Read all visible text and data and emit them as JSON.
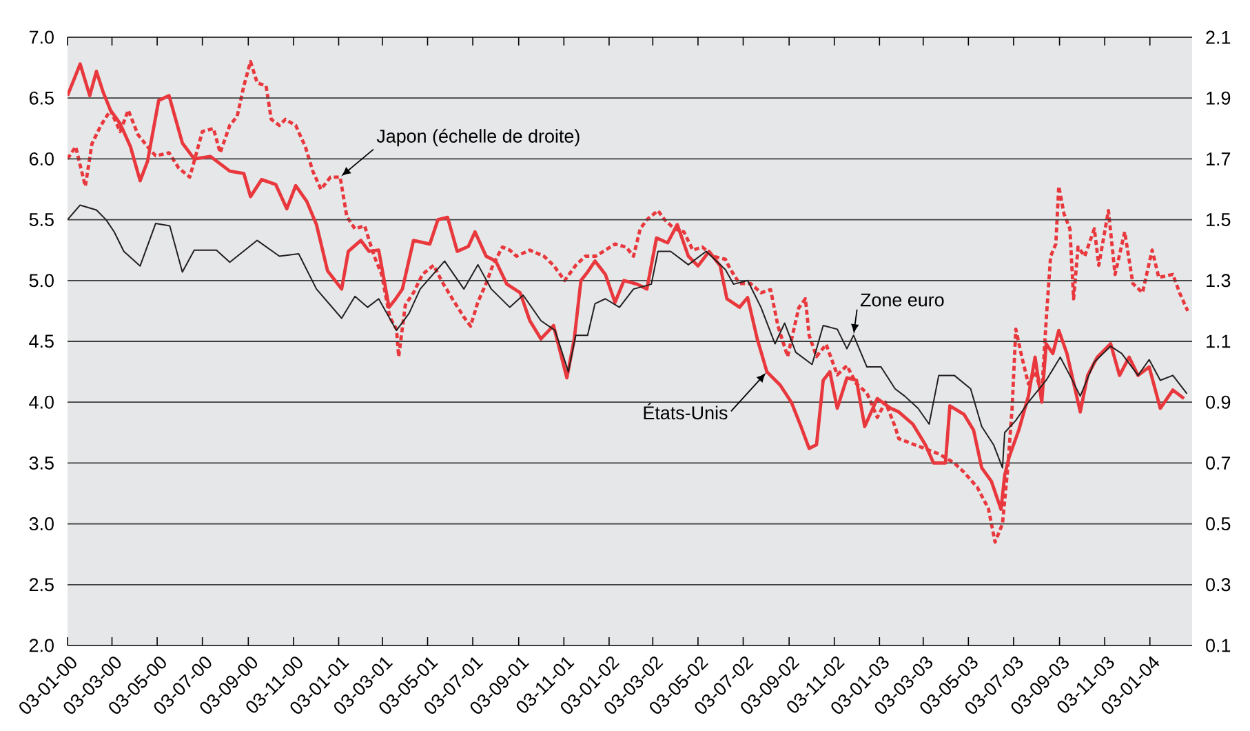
{
  "chart_data": {
    "type": "line",
    "xlim": [
      "2000-01-03",
      "2004-02-29"
    ],
    "ylim": [
      2.0,
      7.0
    ],
    "y2lim": [
      0.1,
      2.1
    ],
    "xticks": [
      {
        "value": "2000-01-03",
        "label": "03-01-00"
      },
      {
        "value": "2000-03-03",
        "label": "03-03-00"
      },
      {
        "value": "2000-05-03",
        "label": "03-05-00"
      },
      {
        "value": "2000-07-03",
        "label": "03-07-00"
      },
      {
        "value": "2000-09-03",
        "label": "03-09-00"
      },
      {
        "value": "2000-11-03",
        "label": "03-11-00"
      },
      {
        "value": "2001-01-03",
        "label": "03-01-01"
      },
      {
        "value": "2001-03-03",
        "label": "03-03-01"
      },
      {
        "value": "2001-05-03",
        "label": "03-05-01"
      },
      {
        "value": "2001-07-03",
        "label": "03-07-01"
      },
      {
        "value": "2001-09-03",
        "label": "03-09-01"
      },
      {
        "value": "2001-11-03",
        "label": "03-11-01"
      },
      {
        "value": "2002-01-03",
        "label": "03-01-02"
      },
      {
        "value": "2002-03-03",
        "label": "03-03-02"
      },
      {
        "value": "2002-05-03",
        "label": "03-05-02"
      },
      {
        "value": "2002-07-03",
        "label": "03-07-02"
      },
      {
        "value": "2002-09-03",
        "label": "03-09-02"
      },
      {
        "value": "2002-11-03",
        "label": "03-11-02"
      },
      {
        "value": "2003-01-03",
        "label": "03-01-03"
      },
      {
        "value": "2003-03-03",
        "label": "03-03-03"
      },
      {
        "value": "2003-05-03",
        "label": "03-05-03"
      },
      {
        "value": "2003-07-03",
        "label": "03-07-03"
      },
      {
        "value": "2003-09-03",
        "label": "03-09-03"
      },
      {
        "value": "2003-11-03",
        "label": "03-11-03"
      },
      {
        "value": "2004-01-03",
        "label": "03-01-04"
      }
    ],
    "yticks": [
      {
        "value": 2.0,
        "label": "2.0"
      },
      2.5,
      {
        "value": 3.0,
        "label": "3.0"
      },
      3.5,
      {
        "value": 4.0,
        "label": "4.0"
      },
      4.5,
      {
        "value": 5.0,
        "label": "5.0"
      },
      5.5,
      {
        "value": 6.0,
        "label": "6.0"
      },
      6.5,
      {
        "value": 7.0,
        "label": "7.0"
      }
    ],
    "y2ticks": [
      0.1,
      0.3,
      0.5,
      0.7,
      0.9,
      1.1,
      1.3,
      1.5,
      1.7,
      1.9,
      2.1
    ],
    "grid": "y",
    "legend": false,
    "marker": "none",
    "series": [
      {
        "name": "États-Unis",
        "color": "#e8383d",
        "line_style": "solid",
        "x": [
          "2000-01-03",
          "2000-01-20",
          "2000-02-02",
          "2000-02-11",
          "2000-02-20",
          "2000-03-01",
          "2000-03-14",
          "2000-03-28",
          "2000-04-10",
          "2000-04-20",
          "2000-05-05",
          "2000-05-19",
          "2000-06-06",
          "2000-06-22",
          "2000-07-14",
          "2000-08-09",
          "2000-08-28",
          "2000-09-06",
          "2000-09-21",
          "2000-10-10",
          "2000-10-25",
          "2000-11-06",
          "2000-11-21",
          "2000-12-04",
          "2000-12-19",
          "2001-01-07",
          "2001-01-16",
          "2001-02-02",
          "2001-02-13",
          "2001-02-26",
          "2001-03-12",
          "2001-03-21",
          "2001-03-30",
          "2001-04-14",
          "2001-05-06",
          "2001-05-17",
          "2001-05-30",
          "2001-06-12",
          "2001-06-27",
          "2001-07-06",
          "2001-07-21",
          "2001-08-03",
          "2001-08-18",
          "2001-09-05",
          "2001-09-18",
          "2001-10-03",
          "2001-10-20",
          "2001-11-07",
          "2001-11-17",
          "2001-11-26",
          "2001-12-05",
          "2001-12-15",
          "2001-12-29",
          "2002-01-11",
          "2002-01-23",
          "2002-02-10",
          "2002-02-23",
          "2002-03-08",
          "2002-03-23",
          "2002-04-05",
          "2002-04-20",
          "2002-05-03",
          "2002-05-18",
          "2002-06-02",
          "2002-06-11",
          "2002-06-28",
          "2002-07-09",
          "2002-07-22",
          "2002-08-04",
          "2002-08-22",
          "2002-09-06",
          "2002-09-19",
          "2002-09-30",
          "2002-10-10",
          "2002-10-19",
          "2002-10-28",
          "2002-11-07",
          "2002-11-20",
          "2002-12-03",
          "2002-12-14",
          "2002-12-31",
          "2003-01-18",
          "2003-01-29",
          "2003-02-17",
          "2003-03-06",
          "2003-03-17",
          "2003-04-02",
          "2003-04-08",
          "2003-04-27",
          "2003-05-10",
          "2003-05-21",
          "2003-06-03",
          "2003-06-16",
          "2003-06-21",
          "2003-06-27",
          "2003-07-10",
          "2003-07-23",
          "2003-08-01",
          "2003-08-10",
          "2003-08-16",
          "2003-08-25",
          "2003-09-02",
          "2003-09-13",
          "2003-10-01",
          "2003-10-11",
          "2003-10-24",
          "2003-11-11",
          "2003-11-23",
          "2003-12-06",
          "2003-12-18",
          "2004-01-02",
          "2004-01-17",
          "2004-02-03",
          "2004-02-18"
        ],
        "values": [
          6.52,
          6.78,
          6.52,
          6.72,
          6.55,
          6.4,
          6.29,
          6.1,
          5.82,
          5.98,
          6.48,
          6.52,
          6.13,
          6.0,
          6.02,
          5.9,
          5.88,
          5.69,
          5.83,
          5.79,
          5.59,
          5.78,
          5.65,
          5.46,
          5.08,
          4.93,
          5.24,
          5.33,
          5.24,
          5.25,
          4.78,
          4.85,
          4.93,
          5.33,
          5.3,
          5.5,
          5.52,
          5.24,
          5.28,
          5.4,
          5.2,
          5.16,
          4.97,
          4.9,
          4.67,
          4.52,
          4.63,
          4.2,
          4.52,
          5.0,
          5.07,
          5.16,
          5.05,
          4.82,
          5.0,
          4.97,
          4.93,
          5.35,
          5.31,
          5.46,
          5.2,
          5.12,
          5.24,
          5.12,
          4.85,
          4.78,
          4.86,
          4.52,
          4.25,
          4.14,
          4.0,
          3.8,
          3.62,
          3.65,
          4.18,
          4.25,
          3.95,
          4.2,
          4.18,
          3.8,
          4.03,
          3.95,
          3.92,
          3.82,
          3.65,
          3.5,
          3.5,
          3.97,
          3.9,
          3.77,
          3.46,
          3.35,
          3.12,
          3.4,
          3.55,
          3.77,
          4.05,
          4.37,
          4.0,
          4.48,
          4.4,
          4.59,
          4.4,
          3.92,
          4.22,
          4.37,
          4.48,
          4.22,
          4.37,
          4.22,
          4.29,
          3.95,
          4.1,
          4.03
        ]
      },
      {
        "name": "Japon (échelle de droite)",
        "color": "#e8383d",
        "line_style": "dashed",
        "axis": "y2",
        "x": [
          "2000-01-03",
          "2000-01-14",
          "2000-01-27",
          "2000-02-05",
          "2000-02-17",
          "2000-03-01",
          "2000-03-14",
          "2000-03-25",
          "2000-04-07",
          "2000-04-20",
          "2000-05-01",
          "2000-05-19",
          "2000-06-01",
          "2000-06-16",
          "2000-07-03",
          "2000-07-18",
          "2000-07-27",
          "2000-08-09",
          "2000-08-19",
          "2000-08-28",
          "2000-09-06",
          "2000-09-15",
          "2000-09-27",
          "2000-10-04",
          "2000-10-15",
          "2000-10-23",
          "2000-11-06",
          "2000-11-19",
          "2000-11-29",
          "2000-12-10",
          "2000-12-23",
          "2001-01-05",
          "2001-01-14",
          "2001-01-25",
          "2001-02-07",
          "2001-02-20",
          "2001-03-02",
          "2001-03-13",
          "2001-03-22",
          "2001-03-25",
          "2001-04-03",
          "2001-04-14",
          "2001-04-26",
          "2001-05-11",
          "2001-05-24",
          "2001-06-08",
          "2001-06-21",
          "2001-06-30",
          "2001-07-10",
          "2001-07-21",
          "2001-07-30",
          "2001-08-12",
          "2001-08-22",
          "2001-08-31",
          "2001-09-18",
          "2001-10-07",
          "2001-10-20",
          "2001-11-04",
          "2001-11-19",
          "2001-12-02",
          "2001-12-16",
          "2001-12-29",
          "2002-01-11",
          "2002-01-26",
          "2002-02-05",
          "2002-02-14",
          "2002-02-23",
          "2002-03-10",
          "2002-03-19",
          "2002-04-01",
          "2002-04-14",
          "2002-04-26",
          "2002-05-09",
          "2002-05-23",
          "2002-06-09",
          "2002-06-15",
          "2002-06-28",
          "2002-07-13",
          "2002-07-27",
          "2002-08-09",
          "2002-08-19",
          "2002-09-01",
          "2002-09-16",
          "2002-09-25",
          "2002-09-30",
          "2002-10-10",
          "2002-10-23",
          "2002-11-07",
          "2002-11-20",
          "2002-12-03",
          "2002-12-17",
          "2002-12-31",
          "2003-01-11",
          "2003-01-24",
          "2003-01-29",
          "2003-03-24",
          "2003-04-14",
          "2003-04-27",
          "2003-05-15",
          "2003-05-30",
          "2003-06-08",
          "2003-06-18",
          "2003-06-25",
          "2003-07-01",
          "2003-07-06",
          "2003-07-14",
          "2003-07-23",
          "2003-08-01",
          "2003-08-10",
          "2003-08-16",
          "2003-08-22",
          "2003-08-29",
          "2003-09-02",
          "2003-09-09",
          "2003-09-17",
          "2003-09-22",
          "2003-09-28",
          "2003-10-07",
          "2003-10-20",
          "2003-10-26",
          "2003-11-08",
          "2003-11-17",
          "2003-11-30",
          "2003-12-11",
          "2003-12-24",
          "2004-01-06",
          "2004-01-15",
          "2004-02-03",
          "2004-02-12",
          "2004-02-23"
        ],
        "values": [
          1.7,
          1.74,
          1.61,
          1.75,
          1.81,
          1.86,
          1.79,
          1.86,
          1.78,
          1.74,
          1.71,
          1.72,
          1.67,
          1.64,
          1.79,
          1.8,
          1.72,
          1.81,
          1.84,
          1.94,
          2.02,
          1.95,
          1.94,
          1.83,
          1.81,
          1.83,
          1.81,
          1.74,
          1.66,
          1.6,
          1.64,
          1.64,
          1.51,
          1.47,
          1.48,
          1.38,
          1.32,
          1.18,
          1.14,
          1.05,
          1.22,
          1.26,
          1.32,
          1.35,
          1.29,
          1.23,
          1.18,
          1.15,
          1.23,
          1.29,
          1.35,
          1.41,
          1.4,
          1.38,
          1.4,
          1.38,
          1.35,
          1.3,
          1.35,
          1.38,
          1.38,
          1.4,
          1.42,
          1.41,
          1.38,
          1.47,
          1.5,
          1.53,
          1.5,
          1.47,
          1.46,
          1.4,
          1.41,
          1.38,
          1.37,
          1.34,
          1.29,
          1.29,
          1.26,
          1.27,
          1.15,
          1.05,
          1.21,
          1.24,
          1.12,
          1.05,
          1.09,
          0.99,
          1.02,
          0.96,
          0.93,
          0.85,
          0.9,
          0.82,
          0.78,
          0.73,
          0.7,
          0.67,
          0.62,
          0.55,
          0.44,
          0.5,
          0.68,
          0.88,
          1.14,
          1.05,
          0.96,
          1.0,
          0.93,
          1.17,
          1.38,
          1.42,
          1.61,
          1.52,
          1.47,
          1.24,
          1.41,
          1.38,
          1.47,
          1.35,
          1.53,
          1.32,
          1.46,
          1.29,
          1.26,
          1.4,
          1.31,
          1.32,
          1.26,
          1.2
        ]
      },
      {
        "name": "Zone euro",
        "color": "#231f20",
        "line_style": "solid",
        "x": [
          "2000-01-03",
          "2000-01-20",
          "2000-02-11",
          "2000-02-24",
          "2000-03-06",
          "2000-03-19",
          "2000-04-10",
          "2000-05-01",
          "2000-05-20",
          "2000-06-06",
          "2000-06-22",
          "2000-07-22",
          "2000-08-09",
          "2000-09-15",
          "2000-10-15",
          "2000-11-10",
          "2000-12-04",
          "2001-01-07",
          "2001-01-25",
          "2001-02-11",
          "2001-02-26",
          "2001-03-22",
          "2001-04-08",
          "2001-04-23",
          "2001-05-26",
          "2001-06-21",
          "2001-07-10",
          "2001-07-28",
          "2001-08-22",
          "2001-09-09",
          "2001-10-03",
          "2001-10-22",
          "2001-11-09",
          "2001-11-19",
          "2001-12-05",
          "2001-12-15",
          "2001-12-29",
          "2002-01-17",
          "2002-02-05",
          "2002-03-01",
          "2002-03-10",
          "2002-03-27",
          "2002-04-20",
          "2002-05-14",
          "2002-06-09",
          "2002-06-20",
          "2002-07-09",
          "2002-07-27",
          "2002-08-15",
          "2002-08-28",
          "2002-09-12",
          "2002-10-04",
          "2002-10-19",
          "2002-11-07",
          "2002-11-20",
          "2002-11-29",
          "2002-12-17",
          "2003-01-05",
          "2003-01-24",
          "2003-02-06",
          "2003-02-24",
          "2003-03-11",
          "2003-03-24",
          "2003-04-14",
          "2003-05-06",
          "2003-05-21",
          "2003-06-06",
          "2003-06-18",
          "2003-06-21",
          "2003-07-06",
          "2003-07-23",
          "2003-08-16",
          "2003-09-04",
          "2003-09-17",
          "2003-10-01",
          "2003-10-20",
          "2003-11-11",
          "2003-11-26",
          "2003-12-18",
          "2004-01-02",
          "2004-01-17",
          "2004-02-03",
          "2004-02-22"
        ],
        "values": [
          5.5,
          5.62,
          5.58,
          5.5,
          5.4,
          5.24,
          5.12,
          5.47,
          5.45,
          5.07,
          5.25,
          5.25,
          5.15,
          5.33,
          5.2,
          5.22,
          4.93,
          4.69,
          4.87,
          4.78,
          4.85,
          4.59,
          4.73,
          4.93,
          5.16,
          4.93,
          5.13,
          4.93,
          4.78,
          4.88,
          4.67,
          4.59,
          4.25,
          4.55,
          4.55,
          4.81,
          4.85,
          4.78,
          4.93,
          4.97,
          5.24,
          5.24,
          5.13,
          5.24,
          5.09,
          4.97,
          5.0,
          4.78,
          4.48,
          4.65,
          4.41,
          4.31,
          4.63,
          4.6,
          4.44,
          4.55,
          4.29,
          4.29,
          4.11,
          4.05,
          3.95,
          3.82,
          4.22,
          4.22,
          4.11,
          3.8,
          3.65,
          3.46,
          3.75,
          3.85,
          4.0,
          4.18,
          4.37,
          4.22,
          4.05,
          4.33,
          4.46,
          4.4,
          4.22,
          4.35,
          4.18,
          4.22,
          4.07
        ]
      }
    ]
  }
}
